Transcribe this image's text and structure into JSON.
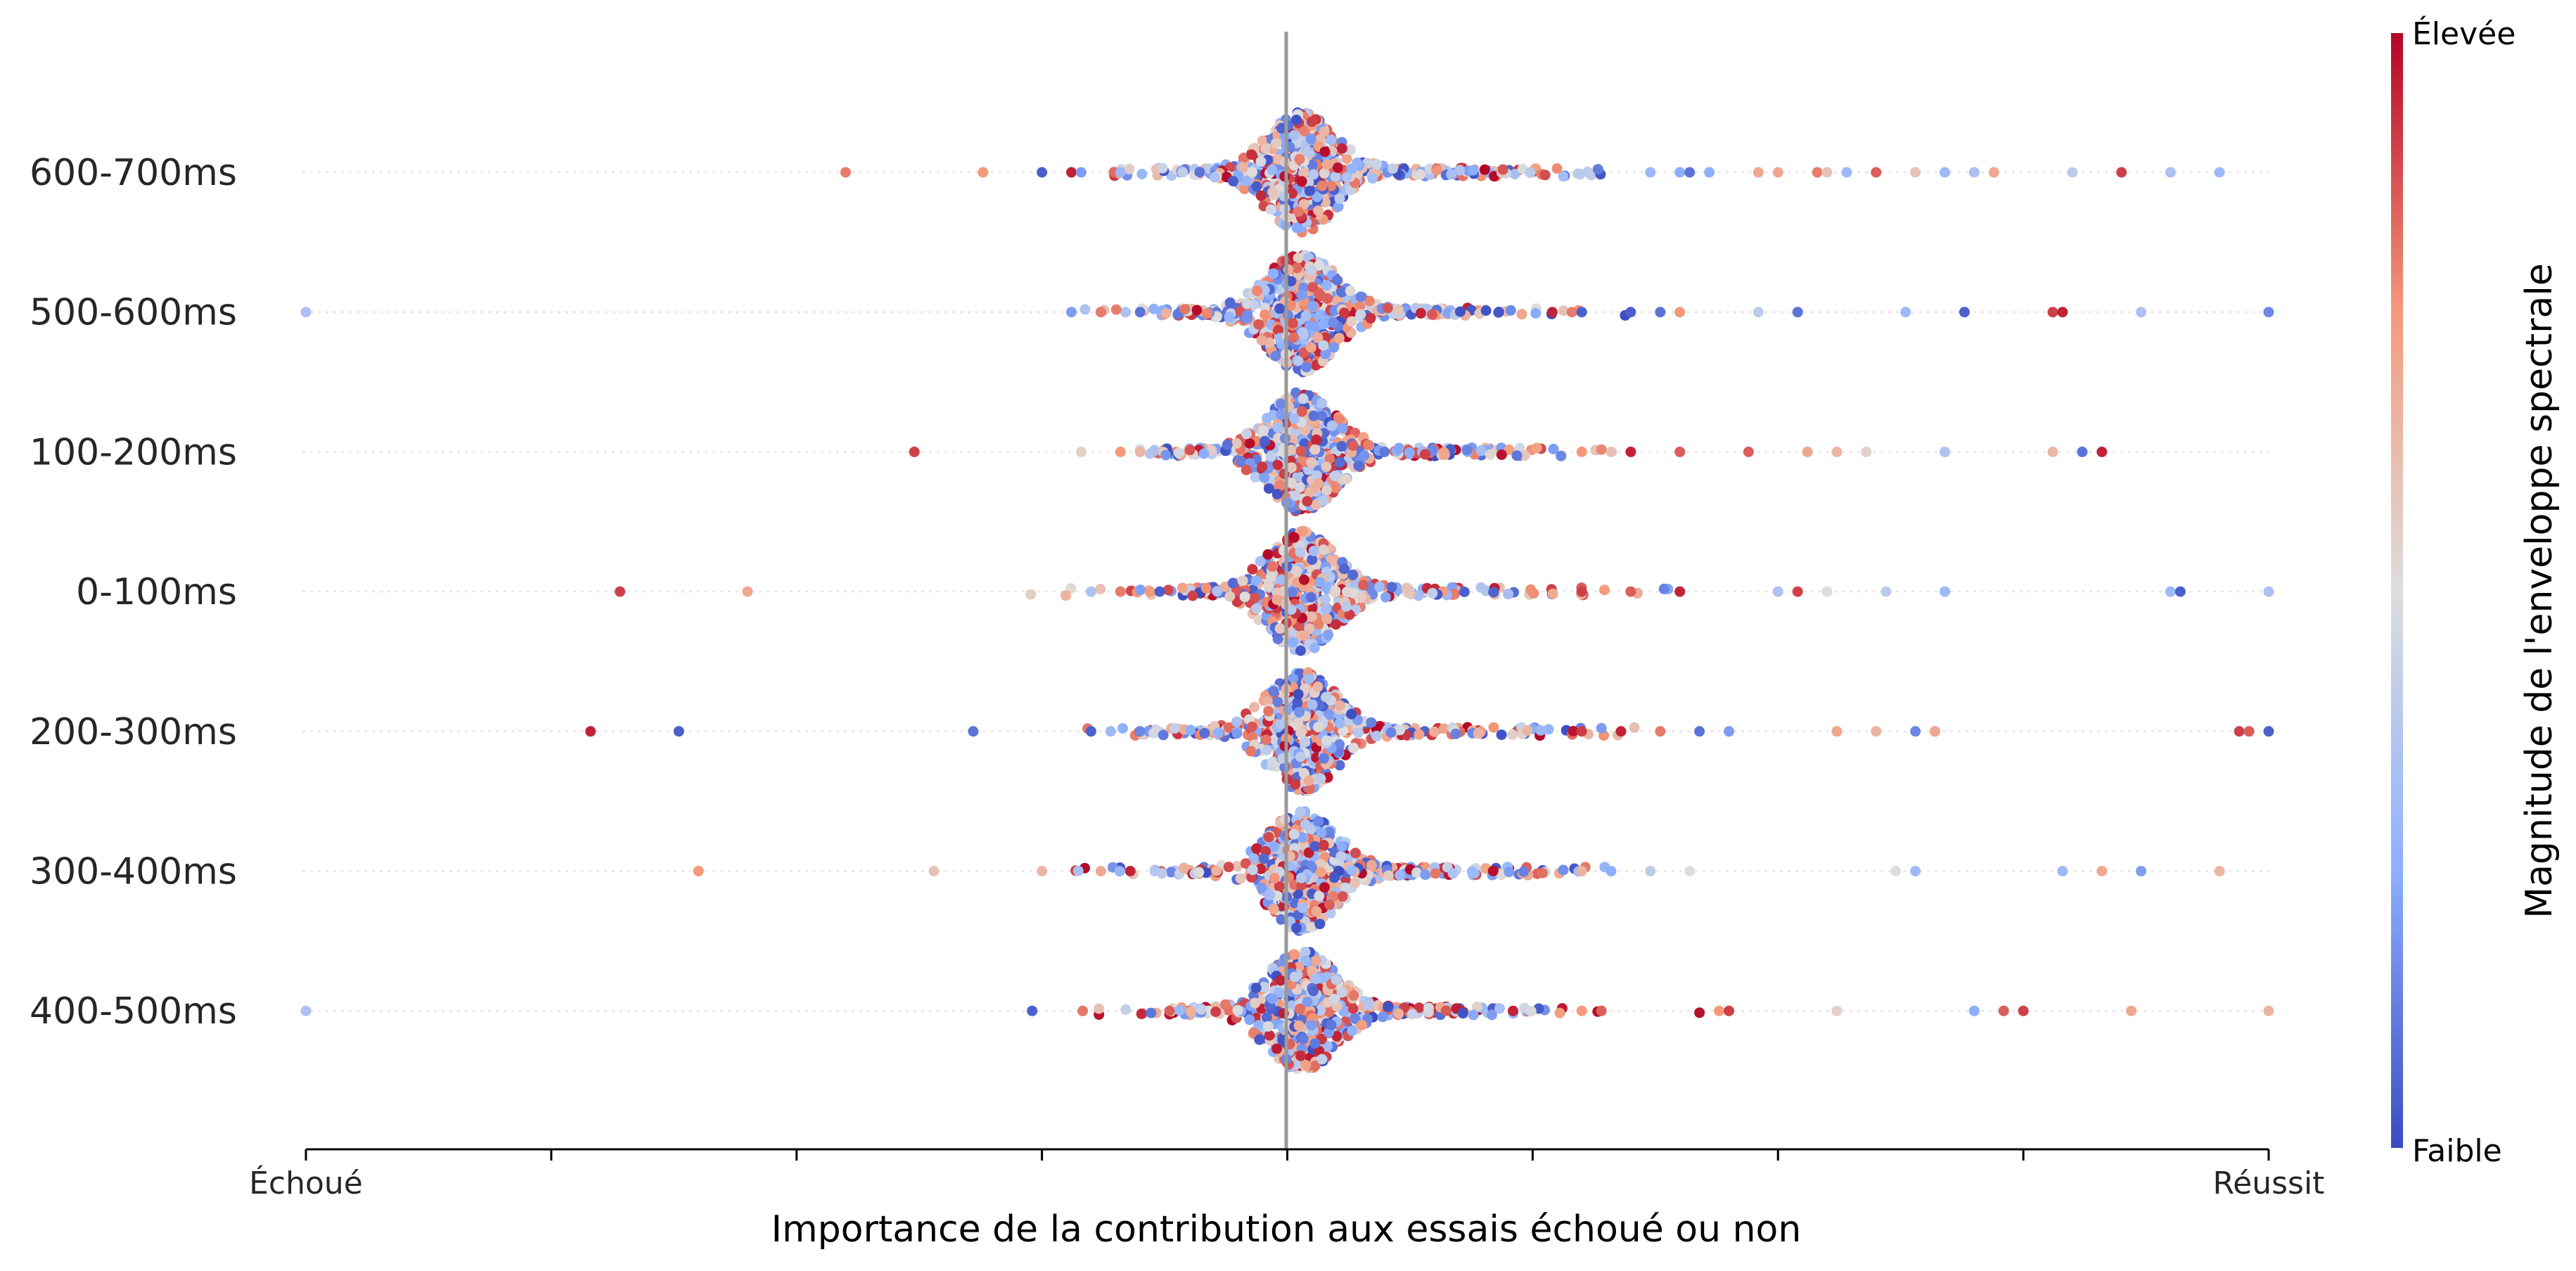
{
  "chart_data": {
    "type": "scatter",
    "subtype": "beeswarm",
    "title": "",
    "xlabel": "Importance de la contribution aux essais échoué ou non",
    "xlim": [
      -1,
      1
    ],
    "x_tick_labels": {
      "left": "Échoué",
      "right": "Réussit"
    },
    "x_ticks": [
      -1,
      -0.75,
      -0.5,
      -0.25,
      0,
      0.25,
      0.5,
      0.75,
      1
    ],
    "reference_line_x": 0,
    "categories": [
      "600-700ms",
      "500-600ms",
      "100-200ms",
      "0-100ms",
      "200-300ms",
      "300-400ms",
      "400-500ms"
    ],
    "colorbar": {
      "label": "Magnitude de l'enveloppe spectrale",
      "high_label": "Élevée",
      "low_label": "Faible",
      "colormap": "coolwarm",
      "low_color": "#3b4cc0",
      "mid_color": "#dddddd",
      "high_color": "#b40426"
    },
    "grid": "dotted horizontal per row",
    "outliers": [
      {
        "row": "600-700ms",
        "points": [
          [
            -0.45,
            0.8
          ],
          [
            -0.31,
            0.75
          ],
          [
            -0.25,
            0.05
          ],
          [
            -0.22,
            0.95
          ],
          [
            -0.21,
            0.2
          ],
          [
            -0.17,
            0.3
          ],
          [
            0.4,
            0.25
          ],
          [
            0.41,
            0.1
          ],
          [
            0.37,
            0.3
          ],
          [
            0.43,
            0.25
          ],
          [
            0.48,
            0.7
          ],
          [
            0.5,
            0.7
          ],
          [
            0.54,
            0.8
          ],
          [
            0.55,
            0.6
          ],
          [
            0.57,
            0.3
          ],
          [
            0.6,
            0.85
          ],
          [
            0.64,
            0.6
          ],
          [
            0.67,
            0.3
          ],
          [
            0.7,
            0.35
          ],
          [
            0.72,
            0.7
          ],
          [
            0.8,
            0.4
          ],
          [
            0.85,
            0.9
          ],
          [
            0.9,
            0.35
          ],
          [
            0.95,
            0.3
          ]
        ]
      },
      {
        "row": "500-600ms",
        "points": [
          [
            -1.0,
            0.35
          ],
          [
            -0.22,
            0.2
          ],
          [
            -0.19,
            0.8
          ],
          [
            -0.15,
            0.1
          ],
          [
            0.27,
            0.95
          ],
          [
            0.29,
            0.8
          ],
          [
            0.3,
            0.05
          ],
          [
            0.35,
            0.05
          ],
          [
            0.38,
            0.1
          ],
          [
            0.4,
            0.75
          ],
          [
            0.48,
            0.4
          ],
          [
            0.52,
            0.1
          ],
          [
            0.63,
            0.3
          ],
          [
            0.69,
            0.05
          ],
          [
            0.78,
            0.9
          ],
          [
            0.79,
            0.95
          ],
          [
            0.87,
            0.35
          ],
          [
            1.0,
            0.15
          ]
        ]
      },
      {
        "row": "100-200ms",
        "points": [
          [
            -0.38,
            0.9
          ],
          [
            -0.21,
            0.55
          ],
          [
            -0.17,
            0.75
          ],
          [
            -0.15,
            0.65
          ],
          [
            0.3,
            0.75
          ],
          [
            0.33,
            0.6
          ],
          [
            0.35,
            0.95
          ],
          [
            0.4,
            0.85
          ],
          [
            0.47,
            0.85
          ],
          [
            0.53,
            0.7
          ],
          [
            0.56,
            0.65
          ],
          [
            0.59,
            0.55
          ],
          [
            0.67,
            0.35
          ],
          [
            0.78,
            0.65
          ],
          [
            0.81,
            0.1
          ],
          [
            0.83,
            0.95
          ]
        ]
      },
      {
        "row": "0-100ms",
        "points": [
          [
            -0.68,
            0.9
          ],
          [
            -0.55,
            0.7
          ],
          [
            -0.2,
            0.35
          ],
          [
            -0.17,
            0.8
          ],
          [
            -0.14,
            0.75
          ],
          [
            -0.13,
            0.05
          ],
          [
            0.3,
            0.9
          ],
          [
            0.35,
            0.85
          ],
          [
            0.4,
            0.95
          ],
          [
            0.5,
            0.35
          ],
          [
            0.52,
            0.9
          ],
          [
            0.55,
            0.5
          ],
          [
            0.61,
            0.4
          ],
          [
            0.67,
            0.3
          ],
          [
            0.9,
            0.3
          ],
          [
            0.91,
            0.05
          ],
          [
            1.0,
            0.35
          ]
        ]
      },
      {
        "row": "200-300ms",
        "points": [
          [
            -0.71,
            0.95
          ],
          [
            -0.62,
            0.05
          ],
          [
            -0.32,
            0.1
          ],
          [
            -0.2,
            0.05
          ],
          [
            -0.18,
            0.3
          ],
          [
            -0.15,
            0.15
          ],
          [
            0.3,
            0.9
          ],
          [
            0.34,
            0.95
          ],
          [
            0.38,
            0.8
          ],
          [
            0.42,
            0.1
          ],
          [
            0.45,
            0.2
          ],
          [
            0.56,
            0.7
          ],
          [
            0.6,
            0.65
          ],
          [
            0.64,
            0.15
          ],
          [
            0.66,
            0.1
          ],
          [
            0.66,
            0.7
          ],
          [
            0.97,
            0.9
          ],
          [
            0.98,
            0.85
          ],
          [
            1.0,
            0.05
          ]
        ]
      },
      {
        "row": "300-400ms",
        "points": [
          [
            -0.6,
            0.75
          ],
          [
            -0.36,
            0.6
          ],
          [
            -0.25,
            0.65
          ],
          [
            -0.19,
            0.7
          ],
          [
            -0.16,
            0.95
          ],
          [
            0.3,
            0.65
          ],
          [
            0.33,
            0.25
          ],
          [
            0.37,
            0.4
          ],
          [
            0.41,
            0.5
          ],
          [
            0.62,
            0.5
          ],
          [
            0.64,
            0.3
          ],
          [
            0.79,
            0.3
          ],
          [
            0.83,
            0.7
          ],
          [
            0.87,
            0.2
          ],
          [
            0.95,
            0.65
          ]
        ]
      },
      {
        "row": "400-500ms",
        "points": [
          [
            -1.0,
            0.35
          ],
          [
            -0.26,
            0.05
          ],
          [
            -0.12,
            0.85
          ],
          [
            0.23,
            0.95
          ],
          [
            0.3,
            0.75
          ],
          [
            0.32,
            0.85
          ],
          [
            0.44,
            0.75
          ],
          [
            0.45,
            0.9
          ],
          [
            0.56,
            0.55
          ],
          [
            0.7,
            0.25
          ],
          [
            0.73,
            0.85
          ],
          [
            0.75,
            0.9
          ],
          [
            0.86,
            0.7
          ],
          [
            1.0,
            0.65
          ]
        ]
      }
    ]
  }
}
